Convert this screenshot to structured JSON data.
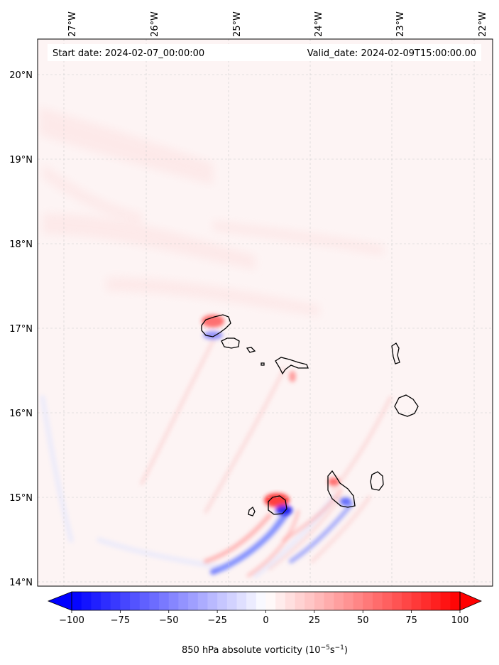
{
  "map": {
    "header": {
      "start_date": "Start date: 2024-02-07_00:00:00",
      "valid_date": "Valid_date: 2024-02-09T15:00:00.00"
    },
    "lon_labels": [
      "27°W",
      "26°W",
      "25°W",
      "24°W",
      "23°W",
      "22°W"
    ],
    "lat_labels": [
      "20°N",
      "19°N",
      "18°N",
      "17°N",
      "16°N",
      "15°N",
      "14°N"
    ],
    "lon_range": [
      -27.35,
      -21.8
    ],
    "lat_range": [
      13.95,
      20.4
    ],
    "gridlines": true
  },
  "colorbar": {
    "label_prefix": "850 hPa absolute vorticity (10",
    "label_sup1": "−5",
    "label_mid": "s",
    "label_sup2": "−1",
    "label_suffix": ")",
    "ticks": [
      "−100",
      "−75",
      "−50",
      "−25",
      "0",
      "25",
      "50",
      "75",
      "100"
    ],
    "range": [
      -100,
      100
    ],
    "colormap": "bwr",
    "extend": "both",
    "low_color": "#0000ff",
    "mid_color": "#ffffff",
    "high_color": "#ff0000"
  }
}
